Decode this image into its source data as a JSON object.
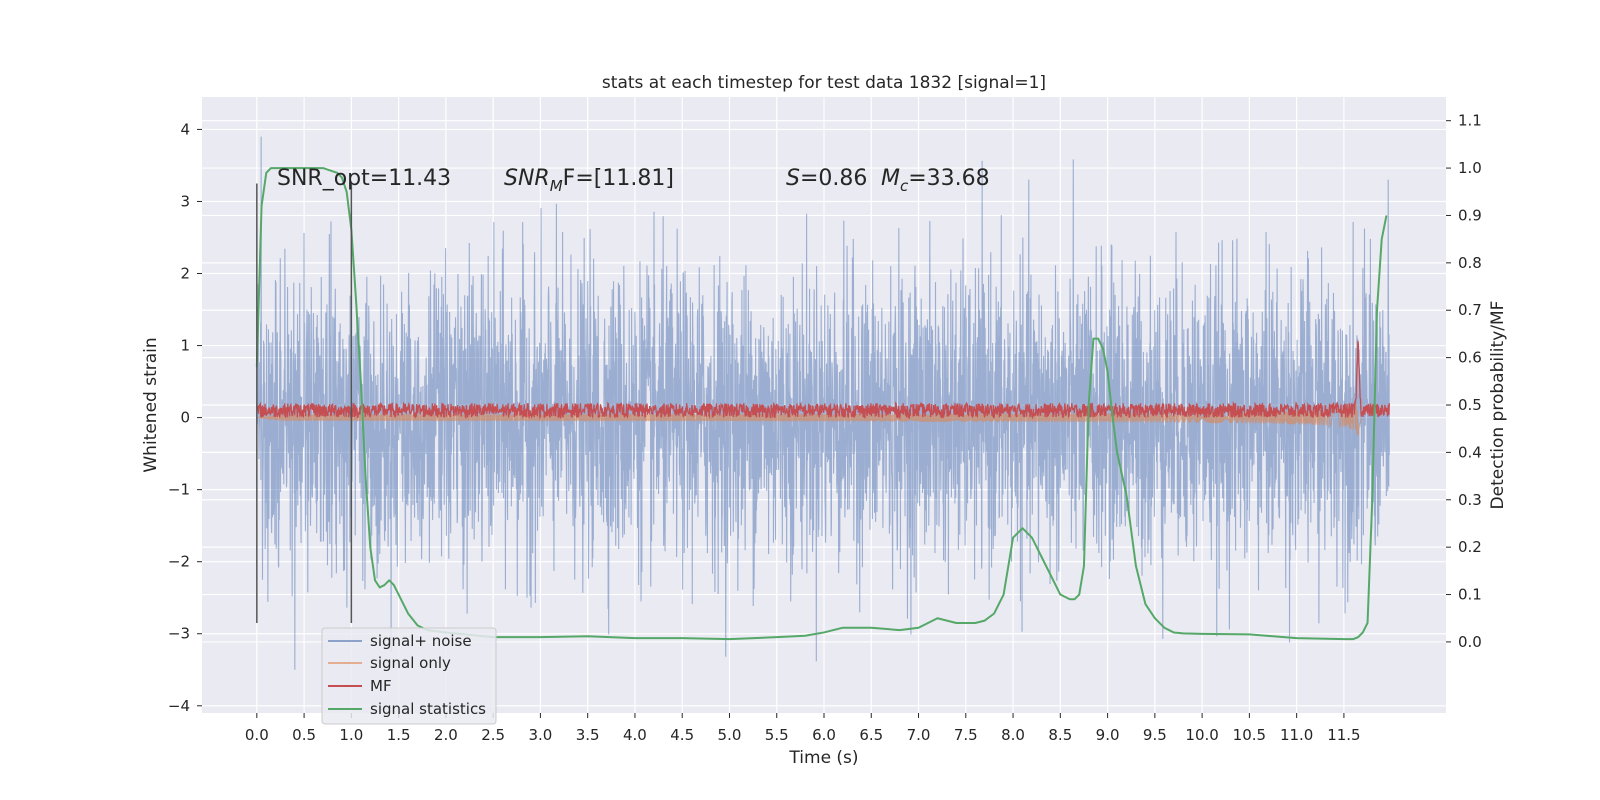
{
  "chart_data": {
    "type": "line",
    "title": "stats at each timestep for test data 1832 [signal=1]",
    "xlabel": "Time (s)",
    "ylabel": "Whitened strain",
    "y2label": "Detection probability/MF",
    "xlim": [
      -0.58,
      12.58
    ],
    "ylim": [
      -4.1,
      4.45
    ],
    "y2lim": [
      -0.15,
      1.15
    ],
    "xticks": [
      0.0,
      0.5,
      1.0,
      1.5,
      2.0,
      2.5,
      3.0,
      3.5,
      4.0,
      4.5,
      5.0,
      5.5,
      6.0,
      6.5,
      7.0,
      7.5,
      8.0,
      8.5,
      9.0,
      9.5,
      10.0,
      10.5,
      11.0,
      11.5
    ],
    "xticklabels": [
      "0.0",
      "0.5",
      "1.0",
      "1.5",
      "2.0",
      "2.5",
      "3.0",
      "3.5",
      "4.0",
      "4.5",
      "5.0",
      "5.5",
      "6.0",
      "6.5",
      "7.0",
      "7.5",
      "8.0",
      "8.5",
      "9.0",
      "9.5",
      "10.0",
      "10.5",
      "11.0",
      "11.5"
    ],
    "yticks": [
      -4,
      -3,
      -2,
      -1,
      0,
      1,
      2,
      3,
      4
    ],
    "yticklabels": [
      "−4",
      "−3",
      "−2",
      "−1",
      "0",
      "1",
      "2",
      "3",
      "4"
    ],
    "y2ticks": [
      0.0,
      0.1,
      0.2,
      0.3,
      0.4,
      0.5,
      0.6,
      0.7,
      0.8,
      0.9,
      1.0,
      1.1
    ],
    "y2ticklabels": [
      "0.0",
      "0.1",
      "0.2",
      "0.3",
      "0.4",
      "0.5",
      "0.6",
      "0.7",
      "0.8",
      "0.9",
      "1.0",
      "1.1"
    ],
    "grid": true,
    "legend_position": "lower-left",
    "series": [
      {
        "name": "signal+ noise",
        "axis": "left",
        "color": "#4c72b0",
        "kind": "noise",
        "x_range": [
          0.0,
          11.98
        ],
        "band_std": 1.0
      },
      {
        "name": "signal only",
        "axis": "left",
        "color": "#dd8452",
        "kind": "chirp",
        "merger_time": 11.65,
        "peak_amplitude": 1.2
      },
      {
        "name": "MF",
        "axis": "left",
        "color": "#c44e52",
        "kind": "matched-filter",
        "baseline": 0.1,
        "peak_time": 11.65,
        "peak_value": 1.0
      },
      {
        "name": "signal statistics",
        "axis": "right",
        "color": "#55a868",
        "x": [
          0.0,
          0.05,
          0.1,
          0.15,
          0.2,
          0.3,
          0.5,
          0.7,
          0.85,
          0.9,
          0.95,
          1.0,
          1.05,
          1.1,
          1.15,
          1.2,
          1.25,
          1.3,
          1.35,
          1.4,
          1.45,
          1.5,
          1.6,
          1.7,
          1.8,
          2.0,
          2.5,
          3.0,
          3.5,
          4.0,
          4.5,
          5.0,
          5.5,
          5.8,
          6.0,
          6.2,
          6.5,
          6.8,
          7.0,
          7.2,
          7.4,
          7.6,
          7.7,
          7.8,
          7.9,
          7.95,
          8.0,
          8.1,
          8.2,
          8.3,
          8.4,
          8.5,
          8.6,
          8.65,
          8.7,
          8.75,
          8.8,
          8.85,
          8.9,
          8.95,
          9.0,
          9.05,
          9.1,
          9.2,
          9.3,
          9.4,
          9.5,
          9.6,
          9.7,
          9.8,
          10.0,
          10.5,
          11.0,
          11.5,
          11.6,
          11.65,
          11.7,
          11.75,
          11.8,
          11.85,
          11.9,
          11.95
        ],
        "y": [
          0.58,
          0.92,
          0.99,
          1.0,
          1.0,
          1.0,
          1.0,
          1.0,
          0.99,
          0.98,
          0.95,
          0.87,
          0.72,
          0.55,
          0.35,
          0.2,
          0.13,
          0.115,
          0.12,
          0.13,
          0.12,
          0.1,
          0.06,
          0.035,
          0.025,
          0.02,
          0.01,
          0.01,
          0.012,
          0.008,
          0.008,
          0.006,
          0.01,
          0.013,
          0.02,
          0.03,
          0.03,
          0.025,
          0.03,
          0.05,
          0.04,
          0.04,
          0.045,
          0.06,
          0.1,
          0.16,
          0.22,
          0.24,
          0.22,
          0.18,
          0.14,
          0.1,
          0.09,
          0.09,
          0.1,
          0.16,
          0.5,
          0.64,
          0.64,
          0.62,
          0.57,
          0.48,
          0.4,
          0.31,
          0.16,
          0.08,
          0.05,
          0.03,
          0.02,
          0.018,
          0.017,
          0.016,
          0.008,
          0.006,
          0.006,
          0.01,
          0.02,
          0.04,
          0.3,
          0.7,
          0.85,
          0.9
        ]
      }
    ],
    "annotations": [
      {
        "text": "SNR_opt=11.43"
      },
      {
        "text": "SNR_MF=[11.81]",
        "math_base": "SNR",
        "math_sub": "M",
        "math_tail": "F=[11.81]"
      },
      {
        "text": "S=0.86",
        "math_base": "S",
        "math_tail": "=0.86"
      },
      {
        "text": "M_c=33.68",
        "math_base": "M",
        "math_sub": "c",
        "math_tail": "=33.68"
      }
    ],
    "vlines": [
      0.0,
      1.0
    ]
  },
  "colors": {
    "axes_bg": "#eaeaf2",
    "grid": "#ffffff",
    "text": "#262626"
  }
}
